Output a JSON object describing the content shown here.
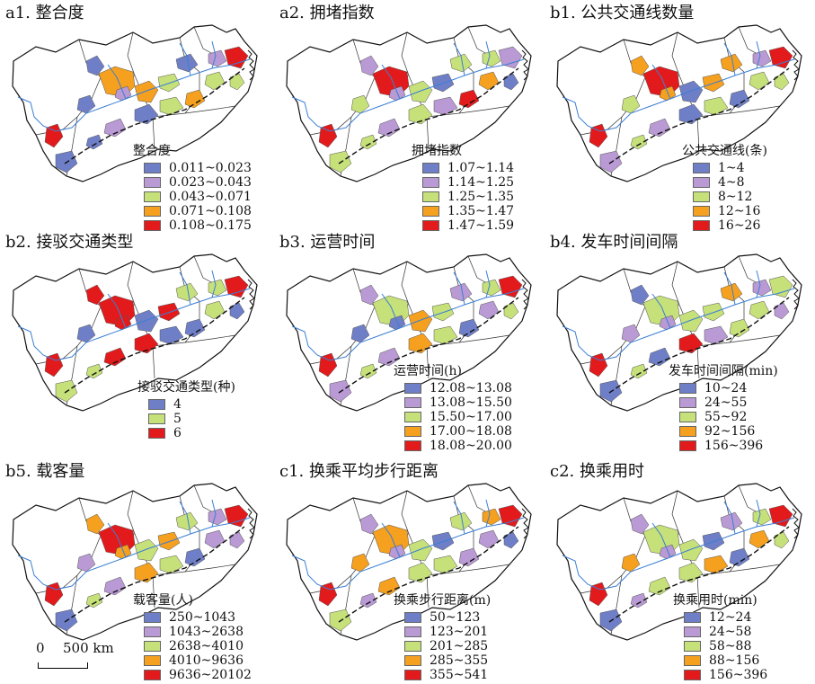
{
  "colors": [
    "#6f7fc7",
    "#b99ad4",
    "#c6e07a",
    "#f5a01e",
    "#e31a1c"
  ],
  "panels": [
    {
      "title": "a1. 整合度",
      "legend_title": "整合度",
      "classes": [
        "0.011~0.023",
        "0.023~0.043",
        "0.043~0.071",
        "0.071~0.108",
        "0.108~0.175"
      ]
    },
    {
      "title": "a2. 拥堵指数",
      "legend_title": "拥堵指数",
      "classes": [
        "1.07~1.14",
        "1.14~1.25",
        "1.25~1.35",
        "1.35~1.47",
        "1.47~1.59"
      ]
    },
    {
      "title": "b1. 公共交通线数量",
      "legend_title": "公共交通线(条)",
      "classes": [
        "1~4",
        "4~8",
        "8~12",
        "12~16",
        "16~26"
      ]
    },
    {
      "title": "b2. 接驳交通类型",
      "legend_title": "接驳交通类型(种)",
      "classes": [
        "4",
        "5",
        "6"
      ]
    },
    {
      "title": "b3. 运营时间",
      "legend_title": "运营时间(h)",
      "classes": [
        "12.08~13.08",
        "13.08~15.50",
        "15.50~17.00",
        "17.00~18.08",
        "18.08~20.00"
      ]
    },
    {
      "title": "b4. 发车时间间隔",
      "legend_title": "发车时间间隔(min)",
      "classes": [
        "10~24",
        "24~55",
        "55~92",
        "92~156",
        "156~396"
      ]
    },
    {
      "title": "b5. 载客量",
      "legend_title": "载客量(人)",
      "classes": [
        "250~1043",
        "1043~2638",
        "2638~4010",
        "4010~9636",
        "9636~20102"
      ]
    },
    {
      "title": "c1. 换乘平均步行距离",
      "legend_title": "换乘步行距离(m)",
      "classes": [
        "50~123",
        "123~201",
        "201~285",
        "285~355",
        "355~541"
      ]
    },
    {
      "title": "c2. 换乘用时",
      "legend_title": "换乘用时(min)",
      "classes": [
        "12~24",
        "24~58",
        "58~88",
        "88~156",
        "156~396"
      ]
    }
  ],
  "panel_class_colors": [
    [
      0,
      1,
      2,
      3,
      4
    ],
    [
      0,
      1,
      2,
      3,
      4
    ],
    [
      0,
      1,
      2,
      3,
      4
    ],
    [
      0,
      2,
      4
    ],
    [
      0,
      1,
      2,
      3,
      4
    ],
    [
      0,
      1,
      2,
      3,
      4
    ],
    [
      0,
      1,
      2,
      3,
      4
    ],
    [
      0,
      1,
      2,
      3,
      4
    ],
    [
      0,
      1,
      2,
      3,
      4
    ]
  ],
  "panel_region_classes": [
    [
      3,
      0,
      3,
      0,
      2,
      0,
      1,
      4,
      2,
      0,
      2,
      3,
      1,
      0,
      4,
      0,
      2,
      1
    ],
    [
      4,
      1,
      2,
      2,
      0,
      2,
      2,
      1,
      3,
      2,
      1,
      4,
      1,
      2,
      4,
      2,
      0,
      1
    ],
    [
      4,
      3,
      0,
      2,
      3,
      3,
      1,
      4,
      2,
      0,
      2,
      0,
      1,
      2,
      4,
      1,
      2,
      3
    ],
    [
      2,
      2,
      0,
      0,
      2,
      1,
      1,
      2,
      1,
      2,
      0,
      0,
      2,
      1,
      2,
      1,
      0,
      2
    ],
    [
      2,
      1,
      3,
      0,
      2,
      1,
      2,
      4,
      1,
      3,
      2,
      0,
      1,
      2,
      4,
      1,
      2,
      0
    ],
    [
      2,
      0,
      2,
      1,
      2,
      3,
      1,
      2,
      2,
      4,
      1,
      2,
      0,
      2,
      4,
      0,
      1,
      1
    ],
    [
      4,
      3,
      2,
      1,
      3,
      2,
      1,
      4,
      1,
      3,
      2,
      0,
      1,
      2,
      4,
      0,
      1,
      3
    ],
    [
      3,
      1,
      2,
      3,
      0,
      2,
      3,
      4,
      1,
      2,
      2,
      1,
      3,
      1,
      4,
      2,
      0,
      1
    ],
    [
      2,
      1,
      2,
      3,
      0,
      1,
      2,
      4,
      3,
      2,
      3,
      0,
      2,
      1,
      4,
      0,
      2,
      1
    ]
  ],
  "scale_bar": {
    "label_zero": "0",
    "label_distance": "500 km"
  }
}
